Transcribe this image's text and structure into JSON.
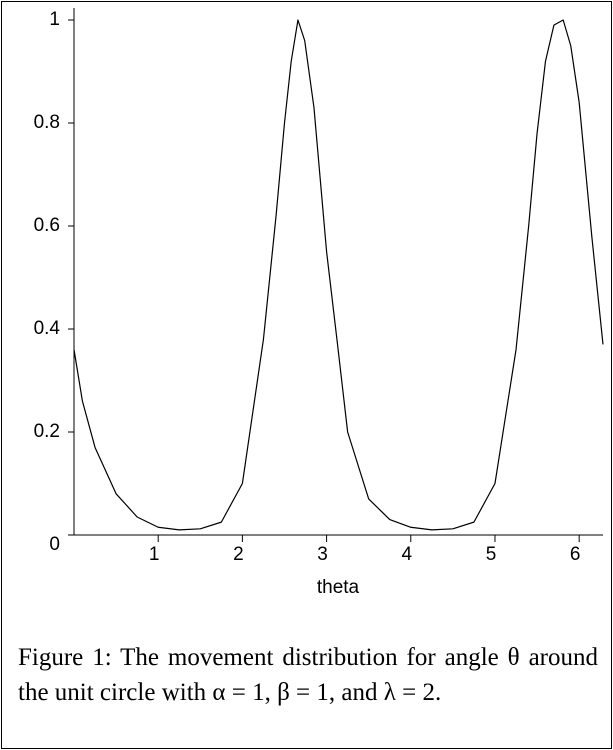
{
  "chart_data": {
    "type": "line",
    "x_label": "theta",
    "x": [
      0,
      0.1,
      0.25,
      0.5,
      0.75,
      1.0,
      1.25,
      1.5,
      1.75,
      2.0,
      2.25,
      2.4,
      2.5,
      2.58,
      2.66,
      2.74,
      2.85,
      3.0,
      3.13,
      3.25,
      3.5,
      3.75,
      4.0,
      4.25,
      4.5,
      4.75,
      5.0,
      5.25,
      5.4,
      5.5,
      5.6,
      5.7,
      5.81,
      5.9,
      6.0,
      6.15,
      6.283
    ],
    "series": [
      {
        "color": "#000000",
        "values": [
          0.36,
          0.26,
          0.17,
          0.08,
          0.035,
          0.015,
          0.01,
          0.012,
          0.025,
          0.1,
          0.38,
          0.62,
          0.8,
          0.92,
          1.0,
          0.96,
          0.83,
          0.55,
          0.37,
          0.2,
          0.07,
          0.03,
          0.015,
          0.01,
          0.012,
          0.025,
          0.1,
          0.36,
          0.6,
          0.78,
          0.92,
          0.99,
          1.0,
          0.95,
          0.84,
          0.58,
          0.37
        ]
      }
    ],
    "xlim": [
      0,
      6.283
    ],
    "ylim": [
      0,
      1
    ],
    "xticks": [
      1,
      2,
      3,
      4,
      5,
      6
    ],
    "yticks": [
      0,
      0.2,
      0.4,
      0.6,
      0.8,
      1
    ]
  },
  "caption": "Figure 1: The movement distribution for angle θ around the unit circle with α = 1, β = 1, and λ = 2."
}
